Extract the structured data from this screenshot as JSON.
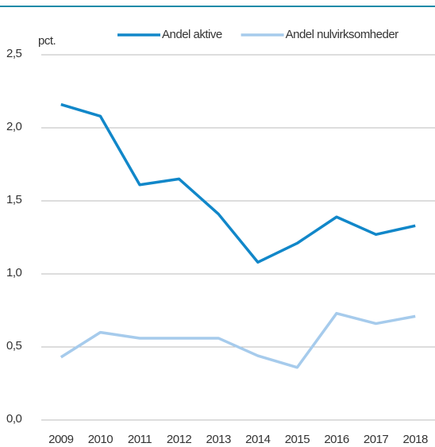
{
  "chart_data": {
    "type": "line",
    "y_label": "pct.",
    "categories": [
      "2009",
      "2010",
      "2011",
      "2012",
      "2013",
      "2014",
      "2015",
      "2016",
      "2017",
      "2018"
    ],
    "series": [
      {
        "name": "Andel aktive",
        "color": "#1187c9",
        "values": [
          2.16,
          2.08,
          1.61,
          1.65,
          1.41,
          1.08,
          1.21,
          1.39,
          1.27,
          1.33
        ]
      },
      {
        "name": "Andel nulvirksomheder",
        "color": "#a6cbec",
        "values": [
          0.43,
          0.6,
          0.56,
          0.56,
          0.56,
          0.44,
          0.36,
          0.73,
          0.66,
          0.71
        ]
      }
    ],
    "ylim": [
      0,
      2.5
    ],
    "yticks": [
      {
        "value": 0,
        "label": "0,0"
      },
      {
        "value": 0.5,
        "label": "0,5"
      },
      {
        "value": 1,
        "label": "1,0"
      },
      {
        "value": 1.5,
        "label": "1,5"
      },
      {
        "value": 2,
        "label": "2,0"
      },
      {
        "value": 2.5,
        "label": "2,5"
      }
    ],
    "grid": true,
    "legend": "top-right"
  }
}
